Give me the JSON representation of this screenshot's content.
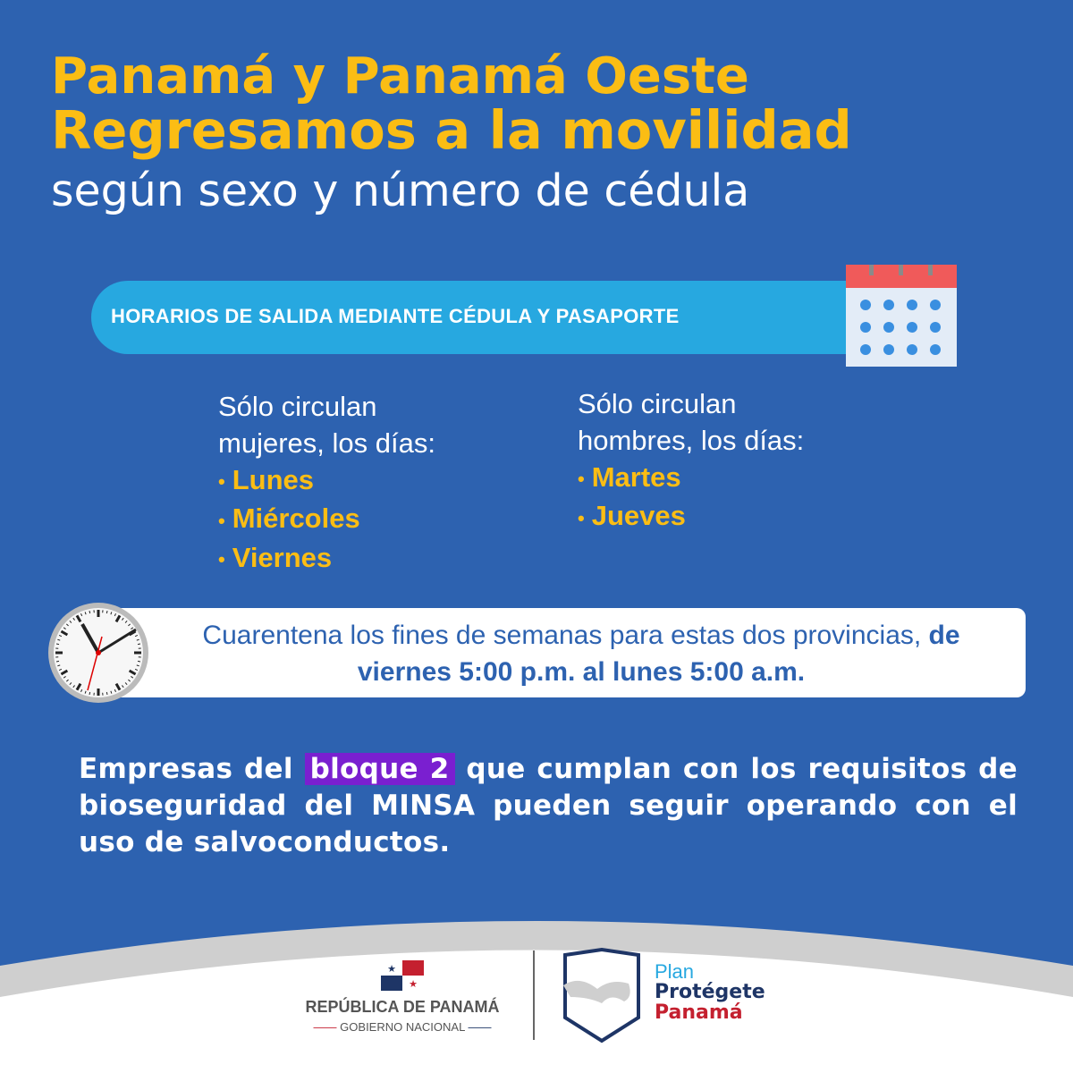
{
  "title": {
    "line1": "Panamá y Panamá Oeste",
    "line2": "Regresamos a la movilidad",
    "line3": "según sexo y número de cédula"
  },
  "banner": {
    "label": "HORARIOS DE SALIDA MEDIANTE CÉDULA Y PASAPORTE",
    "icon": "calendar-icon"
  },
  "women": {
    "line1": "Sólo circulan",
    "line2": "mujeres, los días:",
    "days": [
      "Lunes",
      "Miércoles",
      "Viernes"
    ]
  },
  "men": {
    "line1": "Sólo circulan",
    "line2": "hombres, los días:",
    "days": [
      "Martes",
      "Jueves"
    ]
  },
  "quarantine": {
    "text_regular": "Cuarentena los fines de semanas para estas dos provincias, ",
    "text_bold": "de viernes 5:00 p.m. al lunes 5:00 a.m.",
    "icon": "clock-icon"
  },
  "companies": {
    "before": "Empresas del ",
    "highlight": "bloque 2",
    "after": " que cumplan con los requisitos de bioseguridad del MINSA pueden seguir operando con el uso de salvoconductos."
  },
  "footer": {
    "republic": "REPÚBLICA DE PANAMÁ",
    "government": "GOBIERNO NACIONAL",
    "plan": "Plan",
    "protegete": "Protégete",
    "panama": "Panamá"
  },
  "colors": {
    "background": "#2d62b0",
    "yellow": "#fbbd14",
    "banner": "#27a8e0",
    "highlight": "#7a1fd0",
    "navy": "#1e3566",
    "red": "#c4202f"
  }
}
